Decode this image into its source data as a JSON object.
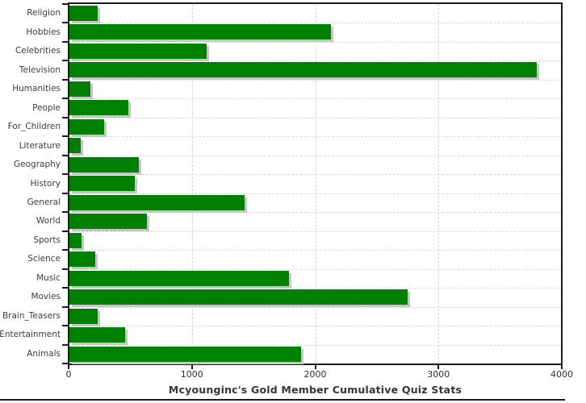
{
  "chart_data": {
    "type": "bar",
    "orientation": "horizontal",
    "title": "Mcyounginc's Gold Member Cumulative Quiz Stats",
    "categories": [
      "Religion",
      "Hobbies",
      "Celebrities",
      "Television",
      "Humanities",
      "People",
      "For_Children",
      "Literature",
      "Geography",
      "History",
      "General",
      "World",
      "Sports",
      "Science",
      "Music",
      "Movies",
      "Brain_Teasers",
      "Entertainment",
      "Animals"
    ],
    "values": [
      230,
      2120,
      1110,
      3790,
      170,
      480,
      280,
      90,
      560,
      530,
      1420,
      630,
      100,
      210,
      1780,
      2740,
      230,
      450,
      1880
    ],
    "xlabel": "",
    "ylabel": "",
    "xlim": [
      0,
      4000
    ],
    "x_ticks": [
      0,
      1000,
      2000,
      3000,
      4000
    ],
    "grid": "dashed",
    "legend": "none",
    "bar_color": "#008000",
    "shadow_color": "#c6c6c6",
    "gridline_color": "#d4d4d4",
    "axis_color": "#1c1c1c",
    "label_color": "#3d3d3d",
    "title_color": "#363636"
  }
}
